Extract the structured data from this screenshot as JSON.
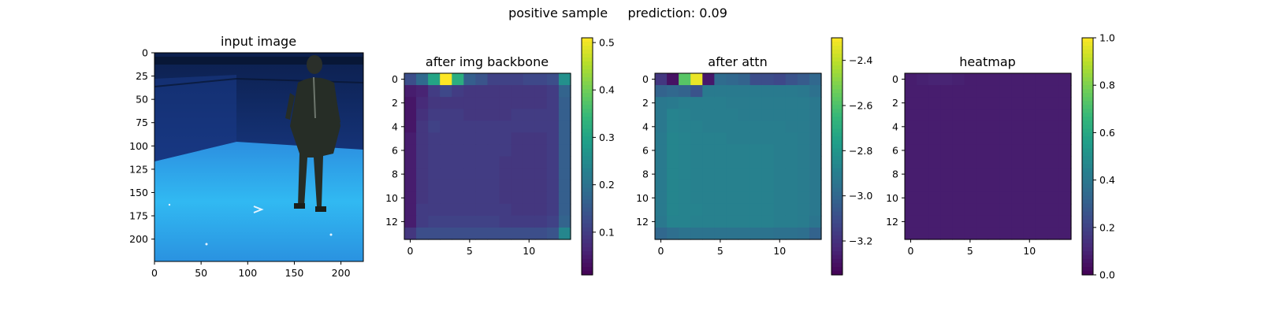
{
  "figure": {
    "suptitle": "positive sample     prediction: 0.09"
  },
  "colors": {
    "viridis": [
      "#440154",
      "#482878",
      "#3e4989",
      "#31688e",
      "#26828e",
      "#1f9e89",
      "#35b779",
      "#6ece58",
      "#b5de2b",
      "#fde725"
    ],
    "floor": "#2fb8f0",
    "wall": "#14306e"
  },
  "chart_data": [
    {
      "type": "image",
      "title": "input image",
      "width": 224,
      "height": 224,
      "xticks": [
        0,
        50,
        100,
        150,
        200
      ],
      "yticks": [
        0,
        25,
        50,
        75,
        100,
        125,
        150,
        175,
        200
      ],
      "content": "photograph of a person standing in a blue motion-capture room"
    },
    {
      "type": "heatmap",
      "title": "after img backbone",
      "size": 14,
      "xticks": [
        0,
        5,
        10
      ],
      "yticks": [
        0,
        2,
        4,
        6,
        8,
        10,
        12
      ],
      "colorbar": {
        "min": 0.01,
        "max": 0.51,
        "ticks": [
          0.1,
          0.2,
          0.3,
          0.4,
          0.5
        ]
      },
      "values": [
        [
          0.13,
          0.18,
          0.3,
          0.51,
          0.32,
          0.16,
          0.14,
          0.11,
          0.11,
          0.11,
          0.12,
          0.12,
          0.13,
          0.26
        ],
        [
          0.05,
          0.06,
          0.1,
          0.12,
          0.1,
          0.09,
          0.09,
          0.09,
          0.09,
          0.09,
          0.09,
          0.09,
          0.1,
          0.17
        ],
        [
          0.04,
          0.07,
          0.09,
          0.09,
          0.09,
          0.09,
          0.09,
          0.09,
          0.09,
          0.09,
          0.09,
          0.09,
          0.1,
          0.16
        ],
        [
          0.04,
          0.08,
          0.1,
          0.1,
          0.1,
          0.09,
          0.09,
          0.09,
          0.09,
          0.1,
          0.1,
          0.1,
          0.1,
          0.16
        ],
        [
          0.04,
          0.09,
          0.11,
          0.1,
          0.1,
          0.1,
          0.1,
          0.1,
          0.1,
          0.1,
          0.1,
          0.1,
          0.1,
          0.16
        ],
        [
          0.05,
          0.09,
          0.1,
          0.1,
          0.1,
          0.1,
          0.1,
          0.1,
          0.1,
          0.09,
          0.09,
          0.09,
          0.1,
          0.16
        ],
        [
          0.05,
          0.09,
          0.1,
          0.1,
          0.1,
          0.1,
          0.1,
          0.1,
          0.1,
          0.09,
          0.09,
          0.09,
          0.1,
          0.16
        ],
        [
          0.05,
          0.09,
          0.1,
          0.1,
          0.1,
          0.1,
          0.1,
          0.1,
          0.09,
          0.09,
          0.09,
          0.09,
          0.1,
          0.16
        ],
        [
          0.05,
          0.09,
          0.1,
          0.1,
          0.1,
          0.1,
          0.1,
          0.1,
          0.09,
          0.09,
          0.09,
          0.09,
          0.1,
          0.16
        ],
        [
          0.05,
          0.09,
          0.1,
          0.1,
          0.1,
          0.1,
          0.1,
          0.1,
          0.09,
          0.09,
          0.09,
          0.09,
          0.1,
          0.16
        ],
        [
          0.05,
          0.09,
          0.1,
          0.1,
          0.1,
          0.1,
          0.1,
          0.1,
          0.09,
          0.09,
          0.09,
          0.09,
          0.1,
          0.16
        ],
        [
          0.05,
          0.1,
          0.1,
          0.1,
          0.1,
          0.1,
          0.1,
          0.1,
          0.1,
          0.09,
          0.09,
          0.09,
          0.1,
          0.16
        ],
        [
          0.05,
          0.1,
          0.11,
          0.11,
          0.11,
          0.11,
          0.11,
          0.11,
          0.1,
          0.1,
          0.1,
          0.1,
          0.11,
          0.17
        ],
        [
          0.09,
          0.13,
          0.13,
          0.13,
          0.13,
          0.13,
          0.13,
          0.13,
          0.13,
          0.13,
          0.13,
          0.13,
          0.14,
          0.24
        ]
      ]
    },
    {
      "type": "heatmap",
      "title": "after attn",
      "size": 14,
      "xticks": [
        0,
        5,
        10
      ],
      "yticks": [
        0,
        2,
        4,
        6,
        8,
        10,
        12
      ],
      "colorbar": {
        "min": -3.35,
        "max": -2.3,
        "ticks": [
          -2.4,
          -2.6,
          -2.8,
          -3.0,
          -3.2
        ]
      },
      "values": [
        [
          -3.18,
          -3.3,
          -2.58,
          -2.33,
          -3.28,
          -2.98,
          -3.0,
          -3.02,
          -3.1,
          -3.1,
          -3.12,
          -3.08,
          -3.05,
          -3.0
        ],
        [
          -3.02,
          -3.0,
          -3.02,
          -3.08,
          -2.92,
          -2.92,
          -2.92,
          -2.92,
          -2.92,
          -2.92,
          -2.92,
          -2.92,
          -2.93,
          -2.96
        ],
        [
          -2.93,
          -2.92,
          -2.9,
          -2.9,
          -2.9,
          -2.9,
          -2.91,
          -2.91,
          -2.91,
          -2.91,
          -2.91,
          -2.91,
          -2.91,
          -2.93
        ],
        [
          -2.93,
          -2.88,
          -2.89,
          -2.9,
          -2.9,
          -2.9,
          -2.9,
          -2.91,
          -2.91,
          -2.91,
          -2.91,
          -2.91,
          -2.91,
          -2.93
        ],
        [
          -2.93,
          -2.88,
          -2.89,
          -2.89,
          -2.9,
          -2.9,
          -2.9,
          -2.9,
          -2.9,
          -2.9,
          -2.9,
          -2.91,
          -2.91,
          -2.93
        ],
        [
          -2.92,
          -2.87,
          -2.88,
          -2.89,
          -2.89,
          -2.89,
          -2.9,
          -2.9,
          -2.9,
          -2.9,
          -2.9,
          -2.9,
          -2.91,
          -2.93
        ],
        [
          -2.92,
          -2.87,
          -2.88,
          -2.89,
          -2.89,
          -2.89,
          -2.89,
          -2.89,
          -2.89,
          -2.89,
          -2.9,
          -2.9,
          -2.91,
          -2.93
        ],
        [
          -2.92,
          -2.87,
          -2.88,
          -2.89,
          -2.89,
          -2.89,
          -2.89,
          -2.89,
          -2.89,
          -2.89,
          -2.9,
          -2.9,
          -2.91,
          -2.93
        ],
        [
          -2.92,
          -2.87,
          -2.88,
          -2.89,
          -2.89,
          -2.89,
          -2.89,
          -2.89,
          -2.89,
          -2.89,
          -2.9,
          -2.9,
          -2.91,
          -2.93
        ],
        [
          -2.92,
          -2.87,
          -2.88,
          -2.89,
          -2.89,
          -2.89,
          -2.89,
          -2.89,
          -2.89,
          -2.89,
          -2.9,
          -2.9,
          -2.91,
          -2.93
        ],
        [
          -2.92,
          -2.87,
          -2.88,
          -2.89,
          -2.89,
          -2.89,
          -2.89,
          -2.89,
          -2.89,
          -2.89,
          -2.9,
          -2.9,
          -2.91,
          -2.93
        ],
        [
          -2.92,
          -2.87,
          -2.88,
          -2.88,
          -2.89,
          -2.89,
          -2.89,
          -2.89,
          -2.89,
          -2.89,
          -2.9,
          -2.9,
          -2.91,
          -2.93
        ],
        [
          -2.93,
          -2.88,
          -2.88,
          -2.89,
          -2.89,
          -2.89,
          -2.89,
          -2.89,
          -2.89,
          -2.89,
          -2.9,
          -2.9,
          -2.91,
          -2.94
        ],
        [
          -3.0,
          -2.97,
          -2.95,
          -2.95,
          -2.95,
          -2.95,
          -2.95,
          -2.95,
          -2.95,
          -2.95,
          -2.96,
          -2.96,
          -2.97,
          -3.02
        ]
      ]
    },
    {
      "type": "heatmap",
      "title": "heatmap",
      "size": 14,
      "xticks": [
        0,
        5,
        10
      ],
      "yticks": [
        0,
        2,
        4,
        6,
        8,
        10,
        12
      ],
      "colorbar": {
        "min": 0.0,
        "max": 1.0,
        "ticks": [
          0.0,
          0.2,
          0.4,
          0.6,
          0.8,
          1.0
        ]
      },
      "values": [
        [
          0.08,
          0.09,
          0.1,
          0.1,
          0.09,
          0.08,
          0.08,
          0.08,
          0.08,
          0.08,
          0.08,
          0.08,
          0.08,
          0.08
        ],
        [
          0.08,
          0.08,
          0.08,
          0.08,
          0.08,
          0.08,
          0.08,
          0.08,
          0.08,
          0.08,
          0.08,
          0.08,
          0.08,
          0.08
        ],
        [
          0.08,
          0.08,
          0.08,
          0.08,
          0.08,
          0.08,
          0.08,
          0.08,
          0.08,
          0.08,
          0.08,
          0.08,
          0.08,
          0.08
        ],
        [
          0.08,
          0.08,
          0.08,
          0.08,
          0.08,
          0.08,
          0.08,
          0.08,
          0.08,
          0.08,
          0.08,
          0.08,
          0.08,
          0.08
        ],
        [
          0.08,
          0.08,
          0.08,
          0.08,
          0.08,
          0.08,
          0.08,
          0.08,
          0.08,
          0.08,
          0.08,
          0.08,
          0.08,
          0.08
        ],
        [
          0.08,
          0.08,
          0.08,
          0.08,
          0.08,
          0.08,
          0.08,
          0.08,
          0.08,
          0.08,
          0.08,
          0.08,
          0.08,
          0.08
        ],
        [
          0.08,
          0.08,
          0.08,
          0.08,
          0.08,
          0.08,
          0.08,
          0.08,
          0.08,
          0.08,
          0.08,
          0.08,
          0.08,
          0.08
        ],
        [
          0.08,
          0.08,
          0.08,
          0.08,
          0.08,
          0.08,
          0.08,
          0.08,
          0.08,
          0.08,
          0.08,
          0.08,
          0.08,
          0.08
        ],
        [
          0.08,
          0.08,
          0.08,
          0.08,
          0.08,
          0.08,
          0.08,
          0.08,
          0.08,
          0.08,
          0.08,
          0.08,
          0.08,
          0.08
        ],
        [
          0.08,
          0.08,
          0.08,
          0.08,
          0.08,
          0.08,
          0.08,
          0.08,
          0.08,
          0.08,
          0.08,
          0.08,
          0.08,
          0.08
        ],
        [
          0.08,
          0.08,
          0.08,
          0.08,
          0.08,
          0.08,
          0.08,
          0.08,
          0.08,
          0.08,
          0.08,
          0.08,
          0.08,
          0.08
        ],
        [
          0.08,
          0.08,
          0.08,
          0.08,
          0.08,
          0.08,
          0.08,
          0.08,
          0.08,
          0.08,
          0.08,
          0.08,
          0.08,
          0.08
        ],
        [
          0.08,
          0.08,
          0.08,
          0.08,
          0.08,
          0.08,
          0.08,
          0.08,
          0.08,
          0.08,
          0.08,
          0.08,
          0.08,
          0.08
        ],
        [
          0.08,
          0.08,
          0.08,
          0.08,
          0.08,
          0.08,
          0.08,
          0.08,
          0.08,
          0.08,
          0.08,
          0.08,
          0.08,
          0.08
        ]
      ]
    }
  ]
}
